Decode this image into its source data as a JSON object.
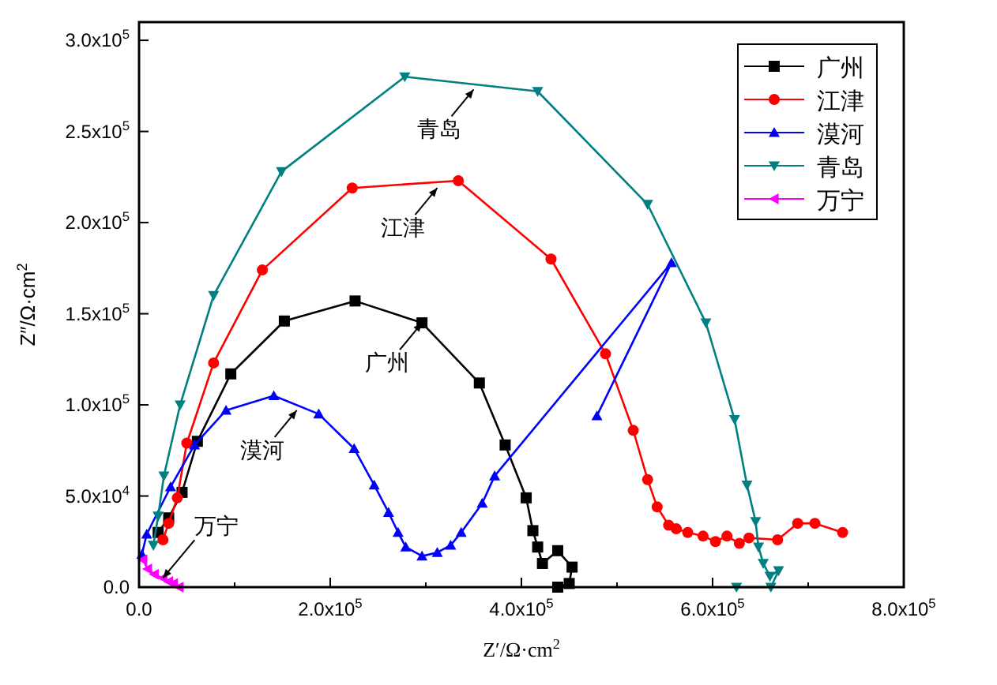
{
  "chart_data": {
    "type": "line",
    "xlabel": "Z′/Ω·cm$^{2}$",
    "ylabel": "Z″/Ω·cm$^{2}$",
    "xlim": [
      0,
      800000
    ],
    "ylim": [
      0,
      310000
    ],
    "xticks": [
      {
        "value": 0,
        "label": "0.0"
      },
      {
        "value": 100000,
        "label": null
      },
      {
        "value": 200000,
        "label": "2.0x10$^{5}$"
      },
      {
        "value": 300000,
        "label": null
      },
      {
        "value": 400000,
        "label": "4.0x10$^{5}$"
      },
      {
        "value": 500000,
        "label": null
      },
      {
        "value": 600000,
        "label": "6.0x10$^{5}$"
      },
      {
        "value": 700000,
        "label": null
      },
      {
        "value": 800000,
        "label": "8.0x10$^{5}$"
      }
    ],
    "yticks": [
      {
        "value": 0,
        "label": "0.0"
      },
      {
        "value": 50000,
        "label": "5.0x10$^{4}$"
      },
      {
        "value": 100000,
        "label": "1.0x10$^{5}$"
      },
      {
        "value": 150000,
        "label": "1.5x10$^{5}$"
      },
      {
        "value": 200000,
        "label": "2.0x10$^{5}$"
      },
      {
        "value": 250000,
        "label": "2.5x10$^{5}$"
      },
      {
        "value": 300000,
        "label": "3.0x10$^{5}$"
      }
    ],
    "legend": "top right",
    "series": [
      {
        "name": "广州",
        "color": "#000000",
        "marker": "square",
        "x": [
          20000,
          31000,
          45000,
          61000,
          96000,
          152000,
          226000,
          296000,
          356000,
          383000,
          405000,
          412000,
          417000,
          422000,
          438000,
          453000,
          450000,
          438000
        ],
        "values": [
          30000,
          38000,
          52000,
          80000,
          117000,
          146000,
          157000,
          145000,
          112000,
          78000,
          49000,
          31000,
          22000,
          13000,
          20000,
          11000,
          2000,
          0
        ]
      },
      {
        "name": "江津",
        "color": "#ff0000",
        "marker": "circle",
        "x": [
          25000,
          31000,
          40000,
          50000,
          78000,
          129000,
          223000,
          334000,
          431000,
          488000,
          517000,
          532000,
          542000,
          554000,
          562000,
          574000,
          590000,
          603000,
          615000,
          628000,
          638000,
          668000,
          689000,
          707000,
          736000
        ],
        "values": [
          26000,
          35000,
          49000,
          79000,
          123000,
          174000,
          219000,
          223000,
          180000,
          128000,
          86000,
          59000,
          44000,
          34000,
          32000,
          30000,
          28000,
          25000,
          28000,
          24000,
          27000,
          26000,
          35000,
          35000,
          30000
        ]
      },
      {
        "name": "漠河",
        "color": "#0000ff",
        "marker": "triangle",
        "x": [
          3000,
          8000,
          33000,
          58000,
          91000,
          141000,
          188000,
          225000,
          246000,
          261000,
          271000,
          279000,
          296000,
          312000,
          326000,
          337000,
          359000,
          372000,
          557000,
          479000
        ],
        "values": [
          18000,
          29000,
          55000,
          78000,
          97000,
          105000,
          95000,
          76000,
          56000,
          41000,
          30000,
          22000,
          17000,
          19000,
          23000,
          30000,
          46000,
          61000,
          178000,
          94000
        ]
      },
      {
        "name": "青岛",
        "color": "#008080",
        "marker": "triangle-down",
        "x": [
          15000,
          20000,
          26000,
          43000,
          78000,
          149000,
          278000,
          417000,
          532000,
          593000,
          623000,
          636000,
          645000,
          648000,
          653000,
          660000,
          669000,
          661000,
          625000
        ],
        "values": [
          23000,
          39000,
          61000,
          100000,
          160000,
          228000,
          280000,
          272000,
          210000,
          145000,
          92000,
          56000,
          36000,
          22000,
          13000,
          6000,
          9000,
          0,
          0
        ]
      },
      {
        "name": "万宁",
        "color": "#ff00ff",
        "marker": "triangle-left",
        "x": [
          4000,
          9000,
          16000,
          25000,
          31000,
          36000,
          42000
        ],
        "values": [
          15000,
          10000,
          7000,
          5000,
          3000,
          2000,
          0
        ]
      }
    ],
    "annotations": [
      {
        "text": "青岛",
        "x": 350000,
        "y": 273000
      },
      {
        "text": "江津",
        "x": 312000,
        "y": 219000
      },
      {
        "text": "广州",
        "x": 296000,
        "y": 145000
      },
      {
        "text": "漠河",
        "x": 165000,
        "y": 97000
      },
      {
        "text": "万宁",
        "x": 25000,
        "y": 5000
      }
    ]
  }
}
